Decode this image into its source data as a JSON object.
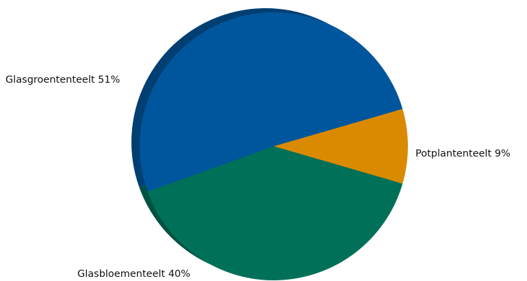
{
  "chart_data": {
    "type": "pie",
    "title": "",
    "slices": [
      {
        "label": "Glasgroententeelt 51%",
        "category": "Glasgroententeelt",
        "value": 51,
        "color": "#00569C",
        "side_color": "#003F72"
      },
      {
        "label": "Potplantenteelt 9%",
        "category": "Potplantenteelt",
        "value": 9,
        "color": "#DA8A00",
        "side_color": "#A56700"
      },
      {
        "label": "Glasbloementeelt 40%",
        "category": "Glasbloementeelt",
        "value": 40,
        "color": "#007058",
        "side_color": "#005241"
      }
    ]
  }
}
